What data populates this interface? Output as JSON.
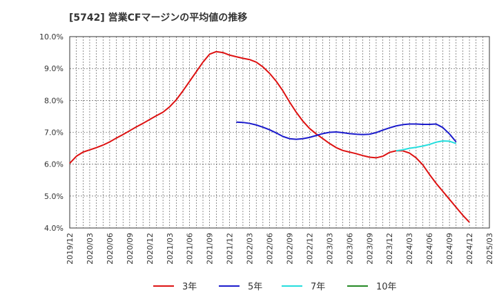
{
  "chart_data": {
    "type": "line",
    "title": "[5742]  営業CFマージンの平均値の推移",
    "xlabel": "",
    "ylabel": "",
    "ylim": [
      4.0,
      10.0
    ],
    "y_ticks": [
      "4.0%",
      "5.0%",
      "6.0%",
      "7.0%",
      "8.0%",
      "9.0%",
      "10.0%"
    ],
    "x_ticks": [
      "2019/12",
      "2020/03",
      "2020/06",
      "2020/09",
      "2020/12",
      "2021/03",
      "2021/06",
      "2021/09",
      "2021/12",
      "2022/03",
      "2022/06",
      "2022/09",
      "2022/12",
      "2023/03",
      "2023/06",
      "2023/09",
      "2023/12",
      "2024/03",
      "2024/06",
      "2024/09",
      "2024/12",
      "2025/03"
    ],
    "grid": true,
    "legend_position": "bottom",
    "series": [
      {
        "name": "3年",
        "color": "#dd1111",
        "points": [
          [
            "2019/12",
            6.03
          ],
          [
            "2020/01",
            6.25
          ],
          [
            "2020/02",
            6.38
          ],
          [
            "2020/03",
            6.45
          ],
          [
            "2020/04",
            6.52
          ],
          [
            "2020/05",
            6.6
          ],
          [
            "2020/06",
            6.7
          ],
          [
            "2020/07",
            6.82
          ],
          [
            "2020/08",
            6.93
          ],
          [
            "2020/09",
            7.05
          ],
          [
            "2020/10",
            7.17
          ],
          [
            "2020/11",
            7.28
          ],
          [
            "2020/12",
            7.4
          ],
          [
            "2021/01",
            7.52
          ],
          [
            "2021/02",
            7.63
          ],
          [
            "2021/03",
            7.8
          ],
          [
            "2021/04",
            8.02
          ],
          [
            "2021/05",
            8.3
          ],
          [
            "2021/06",
            8.6
          ],
          [
            "2021/07",
            8.9
          ],
          [
            "2021/08",
            9.2
          ],
          [
            "2021/09",
            9.45
          ],
          [
            "2021/10",
            9.53
          ],
          [
            "2021/11",
            9.5
          ],
          [
            "2021/12",
            9.42
          ],
          [
            "2022/01",
            9.37
          ],
          [
            "2022/02",
            9.32
          ],
          [
            "2022/03",
            9.28
          ],
          [
            "2022/04",
            9.2
          ],
          [
            "2022/05",
            9.05
          ],
          [
            "2022/06",
            8.85
          ],
          [
            "2022/07",
            8.6
          ],
          [
            "2022/08",
            8.3
          ],
          [
            "2022/09",
            7.95
          ],
          [
            "2022/10",
            7.63
          ],
          [
            "2022/11",
            7.35
          ],
          [
            "2022/12",
            7.12
          ],
          [
            "2023/01",
            6.95
          ],
          [
            "2023/02",
            6.8
          ],
          [
            "2023/03",
            6.65
          ],
          [
            "2023/04",
            6.52
          ],
          [
            "2023/05",
            6.43
          ],
          [
            "2023/06",
            6.38
          ],
          [
            "2023/07",
            6.33
          ],
          [
            "2023/08",
            6.27
          ],
          [
            "2023/09",
            6.22
          ],
          [
            "2023/10",
            6.2
          ],
          [
            "2023/11",
            6.25
          ],
          [
            "2023/12",
            6.37
          ],
          [
            "2024/01",
            6.42
          ],
          [
            "2024/02",
            6.42
          ],
          [
            "2024/03",
            6.35
          ],
          [
            "2024/04",
            6.2
          ],
          [
            "2024/05",
            5.98
          ],
          [
            "2024/06",
            5.68
          ],
          [
            "2024/07",
            5.4
          ],
          [
            "2024/08",
            5.15
          ],
          [
            "2024/09",
            4.9
          ],
          [
            "2024/10",
            4.65
          ],
          [
            "2024/11",
            4.4
          ],
          [
            "2024/12",
            4.18
          ]
        ]
      },
      {
        "name": "5年",
        "color": "#1a1acc",
        "points": [
          [
            "2022/01",
            7.32
          ],
          [
            "2022/02",
            7.31
          ],
          [
            "2022/03",
            7.28
          ],
          [
            "2022/04",
            7.23
          ],
          [
            "2022/05",
            7.16
          ],
          [
            "2022/06",
            7.08
          ],
          [
            "2022/07",
            6.98
          ],
          [
            "2022/08",
            6.87
          ],
          [
            "2022/09",
            6.8
          ],
          [
            "2022/10",
            6.78
          ],
          [
            "2022/11",
            6.8
          ],
          [
            "2022/12",
            6.84
          ],
          [
            "2023/01",
            6.9
          ],
          [
            "2023/02",
            6.96
          ],
          [
            "2023/03",
            7.0
          ],
          [
            "2023/04",
            7.01
          ],
          [
            "2023/05",
            6.99
          ],
          [
            "2023/06",
            6.96
          ],
          [
            "2023/07",
            6.94
          ],
          [
            "2023/08",
            6.93
          ],
          [
            "2023/09",
            6.94
          ],
          [
            "2023/10",
            6.99
          ],
          [
            "2023/11",
            7.07
          ],
          [
            "2023/12",
            7.14
          ],
          [
            "2024/01",
            7.2
          ],
          [
            "2024/02",
            7.24
          ],
          [
            "2024/03",
            7.26
          ],
          [
            "2024/04",
            7.26
          ],
          [
            "2024/05",
            7.25
          ],
          [
            "2024/06",
            7.25
          ],
          [
            "2024/07",
            7.26
          ],
          [
            "2024/08",
            7.15
          ],
          [
            "2024/09",
            6.95
          ],
          [
            "2024/10",
            6.7
          ]
        ]
      },
      {
        "name": "7年",
        "color": "#22dddd",
        "points": [
          [
            "2024/01",
            6.42
          ],
          [
            "2024/02",
            6.45
          ],
          [
            "2024/03",
            6.5
          ],
          [
            "2024/04",
            6.53
          ],
          [
            "2024/05",
            6.57
          ],
          [
            "2024/06",
            6.62
          ],
          [
            "2024/07",
            6.69
          ],
          [
            "2024/08",
            6.73
          ],
          [
            "2024/09",
            6.72
          ],
          [
            "2024/10",
            6.65
          ]
        ]
      },
      {
        "name": "10年",
        "color": "#228822",
        "points": []
      }
    ]
  }
}
